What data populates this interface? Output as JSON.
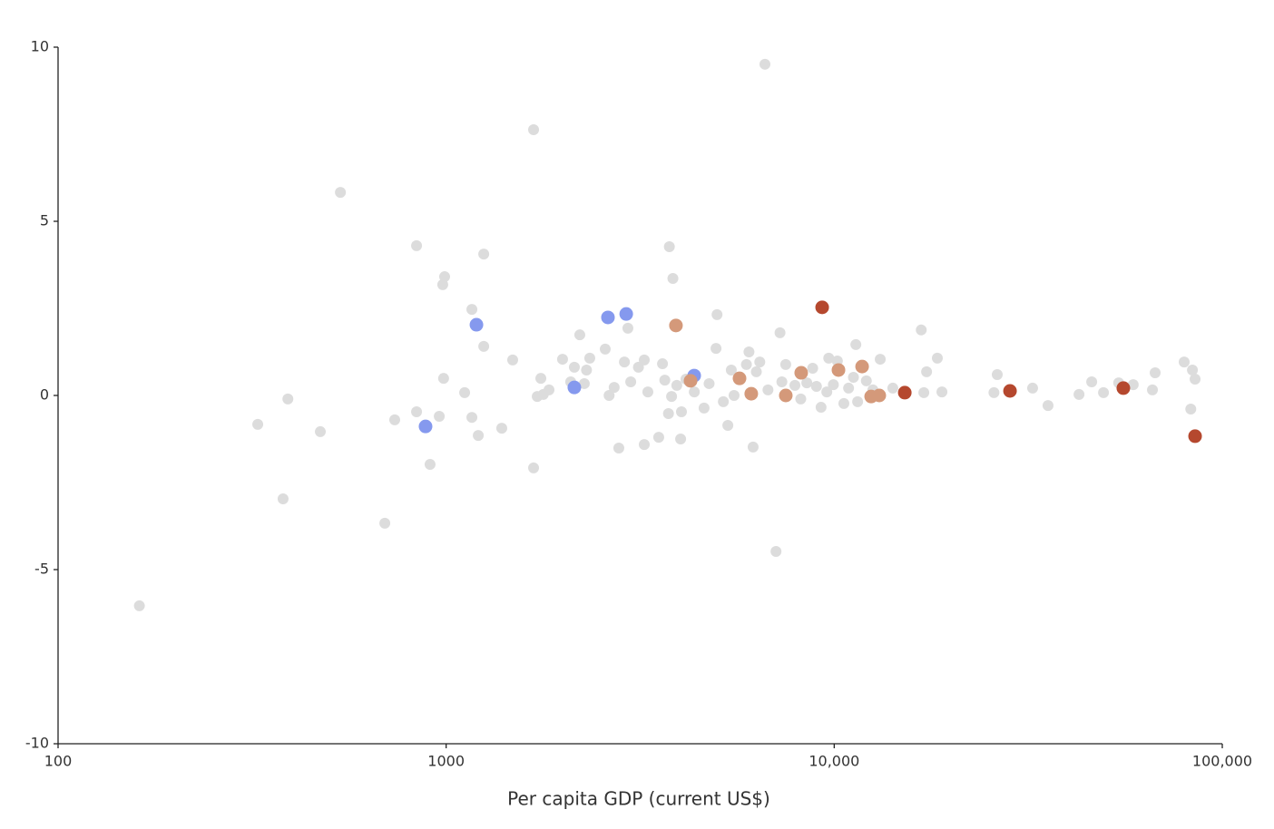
{
  "chart_data": {
    "type": "scatter",
    "x_label": "Per capita GDP (current US$)",
    "xscale": "log",
    "xlim": [
      100,
      100000
    ],
    "xticks": [
      100,
      1000,
      {
        "value": 10000,
        "label": "10,000"
      },
      {
        "value": 100000,
        "label": "100,000"
      }
    ],
    "ylim": [
      -10,
      10
    ],
    "yticks": [
      -10,
      -5,
      0,
      5,
      10
    ],
    "grid": false,
    "series": [
      {
        "color": "#dcdcdc",
        "x": [
          162,
          327,
          380,
          391,
          474,
          534,
          695,
          737,
          839,
          839,
          909,
          960,
          980,
          991,
          985,
          1116,
          1165,
          1165,
          1210,
          1250,
          1250,
          1391,
          1484,
          1680,
          1680,
          1717,
          1754,
          1780,
          1841,
          1995,
          2094,
          2140,
          2210,
          2270,
          2300,
          2345,
          2570,
          2630,
          2710,
          2786,
          2880,
          2940,
          2990,
          3130,
          3240,
          3240,
          3310,
          3530,
          3610,
          3660,
          3740,
          3760,
          3810,
          3840,
          3930,
          4020,
          4040,
          4150,
          4360,
          4620,
          4760,
          4990,
          4960,
          5180,
          5320,
          5430,
          5520,
          5940,
          6030,
          6180,
          6300,
          6430,
          6630,
          6750,
          7080,
          7250,
          7330,
          7500,
          7920,
          8200,
          8500,
          8800,
          9000,
          9250,
          9570,
          9680,
          9950,
          10190,
          10590,
          10890,
          11210,
          11370,
          11490,
          12100,
          12580,
          13140,
          14160,
          16760,
          17020,
          17300,
          18440,
          18950,
          26310,
          25800,
          32450,
          35560,
          42740,
          46080,
          49420,
          54080,
          58950,
          66070,
          67150,
          79760,
          83770,
          82950,
          85100
        ],
        "values": [
          -6.04,
          -0.83,
          -2.97,
          -0.1,
          -1.04,
          5.83,
          -3.67,
          -0.7,
          4.3,
          -0.47,
          -1.98,
          -0.6,
          3.18,
          3.41,
          0.49,
          0.08,
          2.47,
          -0.63,
          -1.15,
          4.06,
          1.41,
          -0.94,
          1.02,
          7.63,
          -2.08,
          -0.03,
          0.49,
          0.03,
          0.16,
          1.04,
          0.39,
          0.81,
          1.74,
          0.34,
          0.73,
          1.07,
          1.33,
          0.0,
          0.23,
          -1.51,
          0.96,
          1.93,
          0.39,
          0.81,
          1.02,
          -1.41,
          0.1,
          -1.2,
          0.91,
          0.44,
          -0.52,
          4.27,
          -0.03,
          3.36,
          0.29,
          -1.25,
          -0.47,
          0.47,
          0.1,
          -0.36,
          0.34,
          2.32,
          1.35,
          -0.18,
          -0.86,
          0.73,
          0.0,
          0.89,
          1.25,
          -1.48,
          0.68,
          0.96,
          9.51,
          0.16,
          -4.48,
          1.8,
          0.39,
          0.89,
          0.29,
          -0.1,
          0.36,
          0.78,
          0.26,
          -0.34,
          0.1,
          1.07,
          0.31,
          0.99,
          -0.23,
          0.21,
          0.52,
          1.46,
          -0.18,
          0.42,
          0.16,
          1.04,
          0.21,
          1.88,
          0.08,
          0.68,
          1.07,
          0.1,
          0.6,
          0.08,
          0.21,
          -0.29,
          0.03,
          0.39,
          0.08,
          0.36,
          0.31,
          0.16,
          0.65,
          0.96,
          0.73,
          -0.39,
          0.47
        ]
      },
      {
        "color": "#8599ee",
        "x": [
          1197,
          2612,
          2911,
          2140,
          885,
          4357
        ],
        "values": [
          2.03,
          2.24,
          2.34,
          0.23,
          -0.89,
          0.57
        ]
      },
      {
        "color": "#d4997a",
        "x": [
          3910,
          4264,
          5702,
          6113,
          7503,
          8222,
          10256,
          11800,
          12450,
          13065
        ],
        "values": [
          2.01,
          0.42,
          0.49,
          0.05,
          0.0,
          0.65,
          0.73,
          0.83,
          -0.03,
          0.0
        ]
      },
      {
        "color": "#b5482e",
        "x": [
          9310,
          15200,
          28380,
          55600,
          85100
        ],
        "values": [
          2.53,
          0.08,
          0.13,
          0.21,
          -1.17
        ]
      }
    ]
  }
}
